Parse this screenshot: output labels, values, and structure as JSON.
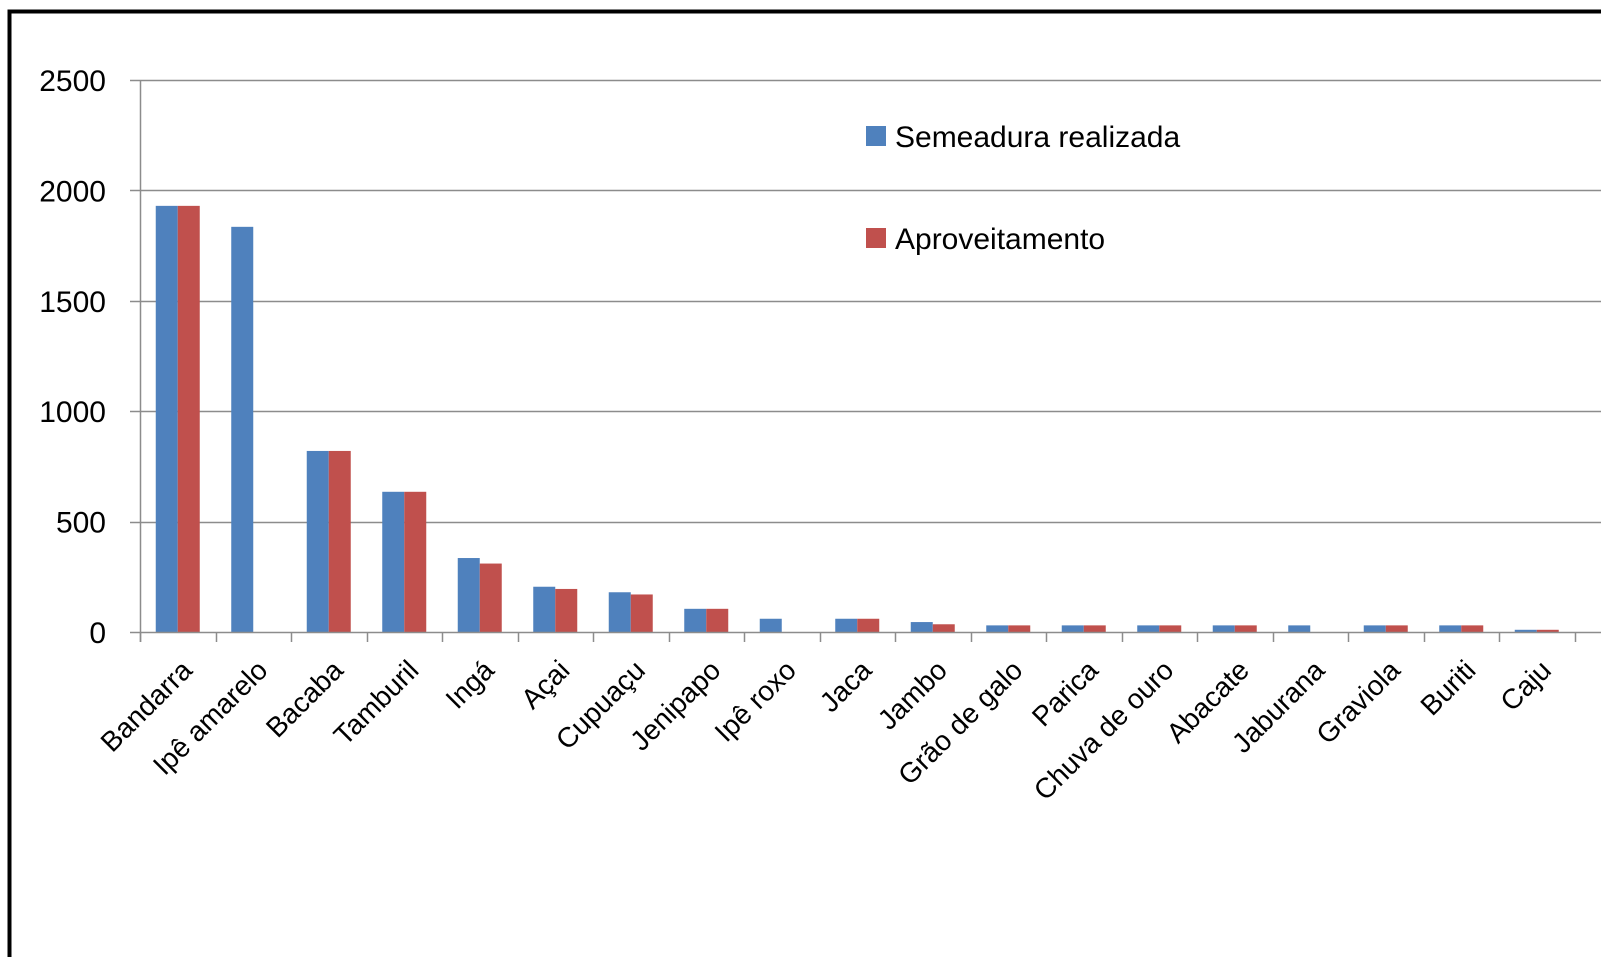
{
  "chart_data": {
    "type": "bar",
    "title": "",
    "xlabel": "",
    "ylabel": "",
    "ylim": [
      0,
      2500
    ],
    "yticks": [
      0,
      500,
      1000,
      1500,
      2000,
      2500
    ],
    "grid": true,
    "legend_position": "top-center",
    "categories": [
      "Bandarra",
      "Ipê amarelo",
      "Bacaba",
      "Tamburil",
      "Ingá",
      "Açai",
      "Cupuaçu",
      "Jenipapo",
      "Ipê roxo",
      "Jaca",
      "Jambo",
      "Grão de galo",
      "Parica",
      "Chuva de ouro",
      "Abacate",
      "Jaburana",
      "Graviola",
      "Buriti",
      "Caju"
    ],
    "series": [
      {
        "name": "Semeadura realizada",
        "color": "#4F81BD",
        "values": [
          1930,
          1835,
          820,
          635,
          335,
          205,
          180,
          105,
          60,
          60,
          45,
          30,
          30,
          30,
          30,
          30,
          30,
          30,
          10
        ]
      },
      {
        "name": "Aproveitamento",
        "color": "#C0504D",
        "values": [
          1930,
          0,
          820,
          635,
          310,
          195,
          170,
          105,
          0,
          60,
          35,
          30,
          30,
          30,
          30,
          0,
          30,
          30,
          10
        ]
      }
    ]
  }
}
